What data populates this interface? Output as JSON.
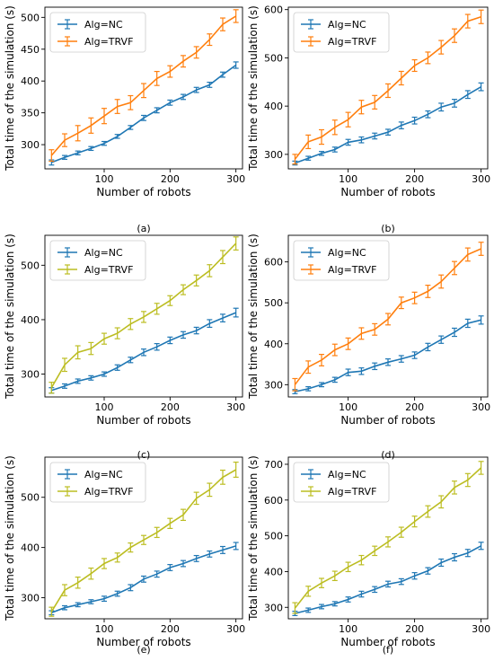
{
  "figure": {
    "captions": [
      "(a)",
      "(b)",
      "(c)",
      "(d)",
      "(e)",
      "(f)"
    ]
  },
  "colors": {
    "nc": "#1f77b4",
    "trvf_orange": "#ff7f0e",
    "trvf_olive": "#bcbd22"
  },
  "chart_data": [
    {
      "type": "line",
      "xlabel": "Number of robots",
      "ylabel": "Total time of the simulation (s)",
      "xlim": [
        10,
        310
      ],
      "ylim": [
        262,
        516
      ],
      "xticks": [
        100,
        200,
        300
      ],
      "yticks": [
        300,
        350,
        400,
        450,
        500
      ],
      "legend": "top-left",
      "grid": false,
      "x": [
        20,
        40,
        60,
        80,
        100,
        120,
        140,
        160,
        180,
        200,
        220,
        240,
        260,
        280,
        300
      ],
      "series": [
        {
          "name": "Alg=NC",
          "color": "#1f77b4",
          "values": [
            272,
            280,
            287,
            294,
            302,
            313,
            327,
            342,
            354,
            366,
            375,
            386,
            394,
            410,
            425
          ],
          "error": [
            4,
            3,
            3,
            3,
            3,
            3,
            3,
            4,
            4,
            4,
            4,
            4,
            4,
            4,
            5
          ]
        },
        {
          "name": "Alg=TRVF",
          "color": "#ff7f0e",
          "values": [
            283,
            307,
            318,
            330,
            345,
            360,
            366,
            385,
            404,
            415,
            431,
            445,
            465,
            489,
            502
          ],
          "error": [
            9,
            10,
            12,
            12,
            12,
            11,
            11,
            11,
            11,
            9,
            9,
            9,
            9,
            10,
            10
          ]
        }
      ]
    },
    {
      "type": "line",
      "xlabel": "Number of robots",
      "ylabel": "Total time of the simulation (s)",
      "xlim": [
        10,
        310
      ],
      "ylim": [
        270,
        605
      ],
      "xticks": [
        100,
        200,
        300
      ],
      "yticks": [
        300,
        400,
        500,
        600
      ],
      "legend": "top-left",
      "grid": false,
      "x": [
        20,
        40,
        60,
        80,
        100,
        120,
        140,
        160,
        180,
        200,
        220,
        240,
        260,
        280,
        300
      ],
      "series": [
        {
          "name": "Alg=NC",
          "color": "#1f77b4",
          "values": [
            282,
            292,
            302,
            310,
            325,
            330,
            338,
            346,
            360,
            370,
            383,
            398,
            406,
            424,
            440
          ],
          "error": [
            4,
            4,
            4,
            5,
            6,
            6,
            6,
            6,
            7,
            7,
            7,
            8,
            8,
            8,
            8
          ]
        },
        {
          "name": "Alg=TRVF",
          "color": "#ff7f0e",
          "values": [
            290,
            326,
            336,
            356,
            372,
            398,
            408,
            432,
            458,
            484,
            500,
            522,
            546,
            576,
            585
          ],
          "error": [
            10,
            14,
            15,
            15,
            15,
            14,
            14,
            14,
            14,
            12,
            12,
            14,
            14,
            14,
            14
          ]
        }
      ]
    },
    {
      "type": "line",
      "xlabel": "Number of robots",
      "ylabel": "Total time of the simulation (s)",
      "xlim": [
        10,
        310
      ],
      "ylim": [
        258,
        555
      ],
      "xticks": [
        100,
        200,
        300
      ],
      "yticks": [
        300,
        400,
        500
      ],
      "legend": "top-left",
      "grid": false,
      "x": [
        20,
        40,
        60,
        80,
        100,
        120,
        140,
        160,
        180,
        200,
        220,
        240,
        260,
        280,
        300
      ],
      "series": [
        {
          "name": "Alg=NC",
          "color": "#1f77b4",
          "values": [
            270,
            278,
            287,
            293,
            300,
            312,
            326,
            340,
            350,
            362,
            372,
            380,
            393,
            403,
            413
          ],
          "error": [
            5,
            4,
            4,
            4,
            4,
            5,
            5,
            6,
            6,
            6,
            6,
            6,
            7,
            7,
            8
          ]
        },
        {
          "name": "Alg=TRVF",
          "color": "#bcbd22",
          "values": [
            275,
            317,
            340,
            347,
            365,
            375,
            392,
            405,
            420,
            435,
            455,
            472,
            490,
            515,
            540
          ],
          "error": [
            10,
            12,
            12,
            11,
            10,
            10,
            10,
            10,
            10,
            9,
            9,
            10,
            11,
            12,
            12
          ]
        }
      ]
    },
    {
      "type": "line",
      "xlabel": "Number of robots",
      "ylabel": "Total time of the simulation (s)",
      "xlim": [
        10,
        310
      ],
      "ylim": [
        270,
        665
      ],
      "xticks": [
        100,
        200,
        300
      ],
      "yticks": [
        300,
        400,
        500,
        600
      ],
      "legend": "top-left",
      "grid": false,
      "x": [
        20,
        40,
        60,
        80,
        100,
        120,
        140,
        160,
        180,
        200,
        220,
        240,
        260,
        280,
        300
      ],
      "series": [
        {
          "name": "Alg=NC",
          "color": "#1f77b4",
          "values": [
            283,
            290,
            300,
            312,
            330,
            333,
            345,
            355,
            363,
            372,
            392,
            410,
            428,
            450,
            458
          ],
          "error": [
            5,
            5,
            5,
            6,
            8,
            8,
            8,
            8,
            8,
            8,
            9,
            9,
            10,
            10,
            10
          ]
        },
        {
          "name": "Alg=TRVF",
          "color": "#ff7f0e",
          "values": [
            300,
            343,
            360,
            385,
            400,
            425,
            435,
            460,
            500,
            512,
            528,
            552,
            585,
            618,
            632
          ],
          "error": [
            15,
            15,
            14,
            14,
            14,
            14,
            14,
            14,
            14,
            14,
            15,
            16,
            16,
            16,
            16
          ]
        }
      ]
    },
    {
      "type": "line",
      "xlabel": "Number of robots",
      "ylabel": "Total time of the simulation (s)",
      "xlim": [
        10,
        310
      ],
      "ylim": [
        258,
        580
      ],
      "xticks": [
        100,
        200,
        300
      ],
      "yticks": [
        300,
        400,
        500
      ],
      "legend": "top-left",
      "grid": false,
      "x": [
        20,
        40,
        60,
        80,
        100,
        120,
        140,
        160,
        180,
        200,
        220,
        240,
        260,
        280,
        300
      ],
      "series": [
        {
          "name": "Alg=NC",
          "color": "#1f77b4",
          "values": [
            270,
            280,
            286,
            292,
            298,
            308,
            320,
            337,
            347,
            360,
            368,
            378,
            387,
            395,
            403
          ],
          "error": [
            4,
            4,
            4,
            4,
            5,
            5,
            6,
            6,
            6,
            6,
            6,
            6,
            6,
            7,
            7
          ]
        },
        {
          "name": "Alg=TRVF",
          "color": "#bcbd22",
          "values": [
            272,
            315,
            330,
            348,
            368,
            380,
            400,
            415,
            430,
            448,
            465,
            498,
            515,
            540,
            555
          ],
          "error": [
            9,
            11,
            11,
            11,
            10,
            9,
            9,
            9,
            10,
            10,
            11,
            12,
            13,
            14,
            15
          ]
        }
      ]
    },
    {
      "type": "line",
      "xlabel": "Number of robots",
      "ylabel": "Total time of the simulation (s)",
      "xlim": [
        10,
        310
      ],
      "ylim": [
        268,
        720
      ],
      "xticks": [
        100,
        200,
        300
      ],
      "yticks": [
        300,
        400,
        500,
        600,
        700
      ],
      "legend": "top-left",
      "grid": false,
      "x": [
        20,
        40,
        60,
        80,
        100,
        120,
        140,
        160,
        180,
        200,
        220,
        240,
        260,
        280,
        300
      ],
      "series": [
        {
          "name": "Alg=NC",
          "color": "#1f77b4",
          "values": [
            283,
            292,
            302,
            310,
            322,
            337,
            350,
            365,
            372,
            388,
            402,
            425,
            440,
            452,
            472
          ],
          "error": [
            6,
            6,
            6,
            6,
            7,
            8,
            8,
            8,
            8,
            9,
            9,
            10,
            10,
            10,
            10
          ]
        },
        {
          "name": "Alg=TRVF",
          "color": "#bcbd22",
          "values": [
            298,
            345,
            368,
            388,
            413,
            432,
            458,
            483,
            510,
            540,
            568,
            595,
            635,
            656,
            690
          ],
          "error": [
            15,
            14,
            13,
            13,
            13,
            13,
            13,
            14,
            14,
            15,
            16,
            17,
            18,
            18,
            18
          ]
        }
      ]
    }
  ]
}
